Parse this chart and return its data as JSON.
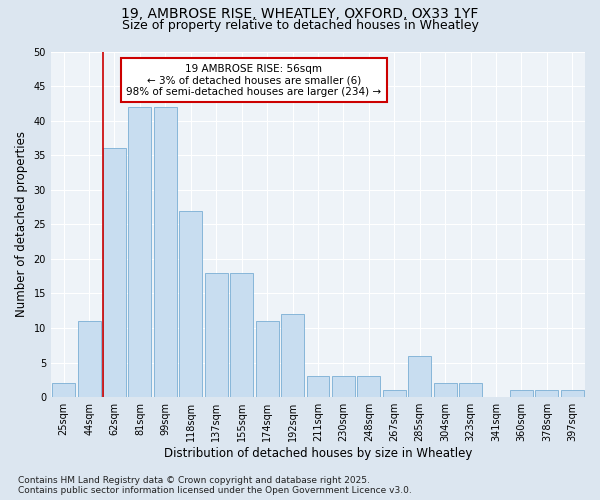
{
  "title1": "19, AMBROSE RISE, WHEATLEY, OXFORD, OX33 1YF",
  "title2": "Size of property relative to detached houses in Wheatley",
  "xlabel": "Distribution of detached houses by size in Wheatley",
  "ylabel": "Number of detached properties",
  "categories": [
    "25sqm",
    "44sqm",
    "62sqm",
    "81sqm",
    "99sqm",
    "118sqm",
    "137sqm",
    "155sqm",
    "174sqm",
    "192sqm",
    "211sqm",
    "230sqm",
    "248sqm",
    "267sqm",
    "285sqm",
    "304sqm",
    "323sqm",
    "341sqm",
    "360sqm",
    "378sqm",
    "397sqm"
  ],
  "values": [
    2,
    11,
    36,
    42,
    42,
    27,
    18,
    18,
    11,
    12,
    3,
    3,
    3,
    1,
    6,
    2,
    2,
    0,
    1,
    1,
    1
  ],
  "bar_color": "#c8ddf0",
  "bar_edge_color": "#7aaed4",
  "highlight_bar_index": 2,
  "highlight_color": "#cc0000",
  "annotation_text": "19 AMBROSE RISE: 56sqm\n← 3% of detached houses are smaller (6)\n98% of semi-detached houses are larger (234) →",
  "annotation_box_color": "#ffffff",
  "annotation_box_edge": "#cc0000",
  "ylim": [
    0,
    50
  ],
  "yticks": [
    0,
    5,
    10,
    15,
    20,
    25,
    30,
    35,
    40,
    45,
    50
  ],
  "footer": "Contains HM Land Registry data © Crown copyright and database right 2025.\nContains public sector information licensed under the Open Government Licence v3.0.",
  "bg_color": "#dce6f0",
  "plot_bg_color": "#eef3f8",
  "grid_color": "#ffffff",
  "title_fontsize": 10,
  "subtitle_fontsize": 9,
  "axis_label_fontsize": 8.5,
  "tick_fontsize": 7,
  "footer_fontsize": 6.5,
  "annotation_fontsize": 7.5
}
